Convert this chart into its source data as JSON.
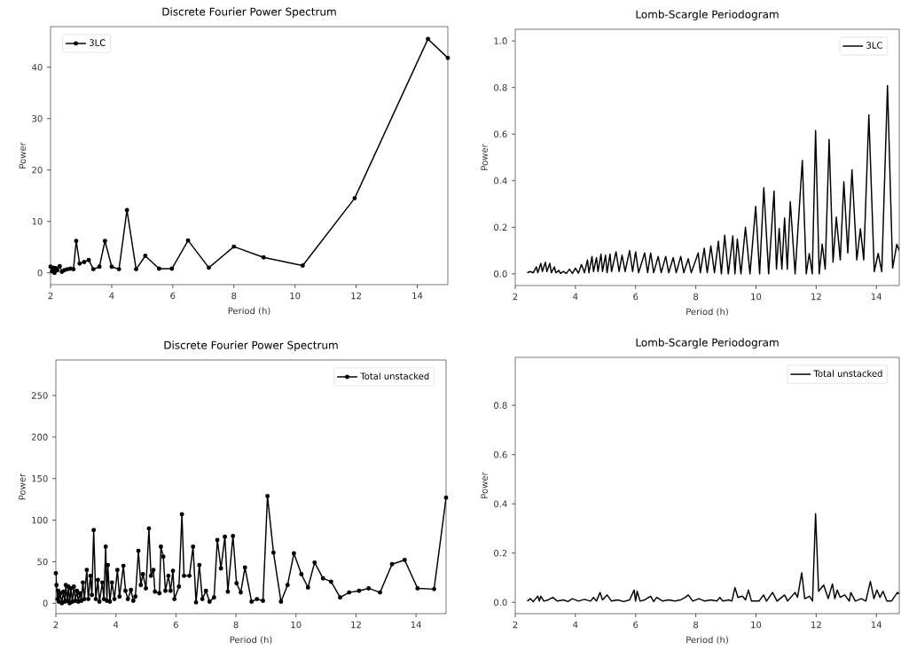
{
  "chart_data": [
    {
      "type": "line",
      "title": "Discrete Fourier Power Spectrum",
      "xlabel": "Period (h)",
      "ylabel": "Power",
      "xlim": [
        2,
        15
      ],
      "ylim": [
        -2.3,
        47.9
      ],
      "xticks": [
        2,
        4,
        6,
        8,
        10,
        12,
        14
      ],
      "yticks": [
        0,
        10,
        20,
        30,
        40
      ],
      "marker": "circle",
      "legend": "top left",
      "x": [
        2.0,
        2.05,
        2.1,
        2.13,
        2.17,
        2.22,
        2.3,
        2.37,
        2.45,
        2.55,
        2.65,
        2.75,
        2.84,
        2.95,
        3.1,
        3.25,
        3.4,
        3.6,
        3.78,
        4.0,
        4.24,
        4.5,
        4.8,
        5.1,
        5.55,
        5.97,
        6.5,
        7.18,
        8.0,
        8.97,
        10.25,
        11.95,
        14.35,
        15.0
      ],
      "series": [
        {
          "name": "3LC",
          "color": "#000000",
          "values": [
            1.2,
            0.3,
            1.0,
            0,
            0.9,
            0.5,
            1.3,
            0.2,
            0.5,
            0.7,
            0.8,
            0.7,
            6.2,
            1.8,
            2.1,
            2.5,
            0.7,
            1.2,
            6.2,
            1.2,
            0.7,
            12.2,
            0.7,
            3.3,
            0.8,
            0.8,
            6.3,
            1.0,
            5.1,
            3.0,
            1.4,
            14.5,
            45.5,
            41.8
          ]
        }
      ]
    },
    {
      "type": "line",
      "title": "Lomb-Scargle Periodogram",
      "xlabel": "Period (h)",
      "ylabel": "Power",
      "xlim": [
        2,
        14.76
      ],
      "ylim": [
        -0.05,
        1.05
      ],
      "xticks": [
        2,
        4,
        6,
        8,
        10,
        12,
        14
      ],
      "yticks": [
        {
          "value": 0,
          "label": "0.0"
        },
        {
          "value": 0.2,
          "label": "0.2"
        },
        {
          "value": 0.4,
          "label": "0.4"
        },
        {
          "value": 0.6,
          "label": "0.6"
        },
        {
          "value": 0.8,
          "label": "0.8"
        },
        {
          "value": 1.0,
          "label": "1.0"
        }
      ],
      "marker": "none",
      "legend": "top right",
      "x": [
        2.4,
        2.5,
        2.6,
        2.7,
        2.75,
        2.85,
        2.9,
        3.0,
        3.05,
        3.15,
        3.2,
        3.3,
        3.35,
        3.45,
        3.5,
        3.6,
        3.7,
        3.8,
        3.9,
        4.0,
        4.1,
        4.2,
        4.3,
        4.4,
        4.45,
        4.55,
        4.6,
        4.7,
        4.75,
        4.85,
        4.9,
        5.0,
        5.05,
        5.15,
        5.2,
        5.35,
        5.45,
        5.55,
        5.65,
        5.8,
        5.9,
        6.0,
        6.1,
        6.3,
        6.4,
        6.5,
        6.6,
        6.75,
        6.85,
        7.0,
        7.1,
        7.25,
        7.35,
        7.5,
        7.6,
        7.75,
        7.85,
        8.08,
        8.15,
        8.28,
        8.38,
        8.5,
        8.62,
        8.75,
        8.85,
        8.96,
        9.08,
        9.23,
        9.3,
        9.38,
        9.5,
        9.65,
        9.8,
        9.99,
        10.12,
        10.26,
        10.42,
        10.6,
        10.68,
        10.77,
        10.86,
        10.95,
        11.04,
        11.14,
        11.3,
        11.54,
        11.67,
        11.77,
        11.87,
        11.98,
        12.1,
        12.2,
        12.3,
        12.43,
        12.56,
        12.67,
        12.8,
        12.92,
        13.05,
        13.19,
        13.35,
        13.47,
        13.58,
        13.75,
        13.93,
        14.06,
        14.18,
        14.37,
        14.54,
        14.68,
        14.76
      ],
      "series": [
        {
          "name": "3LC",
          "color": "#000000",
          "values": [
            0.005,
            0.01,
            0.005,
            0.03,
            0.005,
            0.045,
            0.01,
            0.05,
            0.01,
            0.045,
            0.005,
            0.03,
            0.005,
            0.015,
            0.002,
            0.01,
            0.002,
            0.02,
            0.002,
            0.025,
            0.003,
            0.04,
            0.005,
            0.06,
            0.005,
            0.075,
            0.01,
            0.07,
            0.01,
            0.085,
            0.01,
            0.08,
            0.005,
            0.085,
            0.01,
            0.095,
            0.01,
            0.08,
            0.01,
            0.1,
            0.01,
            0.095,
            0.005,
            0.09,
            0.005,
            0.09,
            0.005,
            0.075,
            0.005,
            0.075,
            0.005,
            0.07,
            0.005,
            0.075,
            0.005,
            0.065,
            0.005,
            0.09,
            0.005,
            0.11,
            0.005,
            0.12,
            0.005,
            0.14,
            0.0,
            0.166,
            0.0,
            0.163,
            0.0,
            0.15,
            0.0,
            0.2,
            0.0,
            0.29,
            0.0,
            0.37,
            0.0,
            0.355,
            0.02,
            0.195,
            0.02,
            0.24,
            0.02,
            0.31,
            0.0,
            0.487,
            0.0,
            0.087,
            0.0,
            0.615,
            0.0,
            0.128,
            0.02,
            0.577,
            0.05,
            0.244,
            0.06,
            0.395,
            0.09,
            0.447,
            0.06,
            0.194,
            0.06,
            0.683,
            0.01,
            0.088,
            0.01,
            0.808,
            0.025,
            0.127,
            0.1
          ]
        }
      ]
    },
    {
      "type": "line",
      "title": "Discrete Fourier Power Spectrum",
      "xlabel": "Period (h)",
      "ylabel": "Power",
      "xlim": [
        2,
        15
      ],
      "ylim": [
        -12.5,
        292.7
      ],
      "xticks": [
        2,
        4,
        6,
        8,
        10,
        12,
        14
      ],
      "yticks": [
        0,
        50,
        100,
        150,
        200,
        250
      ],
      "marker": "circle",
      "legend": "top right",
      "x": [
        2.0,
        2.02,
        2.05,
        2.08,
        2.1,
        2.15,
        2.2,
        2.25,
        2.3,
        2.33,
        2.38,
        2.42,
        2.46,
        2.5,
        2.55,
        2.6,
        2.65,
        2.7,
        2.75,
        2.8,
        2.85,
        2.9,
        2.95,
        3.03,
        3.08,
        3.15,
        3.2,
        3.26,
        3.33,
        3.4,
        3.45,
        3.55,
        3.6,
        3.66,
        3.7,
        3.73,
        3.8,
        3.87,
        3.95,
        4.05,
        4.12,
        4.25,
        4.32,
        4.4,
        4.5,
        4.58,
        4.65,
        4.75,
        4.83,
        4.9,
        5.0,
        5.1,
        5.17,
        5.25,
        5.3,
        5.45,
        5.5,
        5.58,
        5.65,
        5.75,
        5.82,
        5.9,
        5.95,
        6.1,
        6.2,
        6.27,
        6.45,
        6.57,
        6.67,
        6.78,
        6.88,
        7.0,
        7.12,
        7.27,
        7.38,
        7.5,
        7.63,
        7.73,
        7.9,
        8.02,
        8.16,
        8.3,
        8.52,
        8.7,
        8.9,
        9.05,
        9.25,
        9.5,
        9.72,
        9.93,
        10.18,
        10.4,
        10.62,
        10.9,
        11.17,
        11.47,
        11.77,
        12.1,
        12.42,
        12.8,
        13.2,
        13.62,
        14.05,
        14.6,
        15.0
      ],
      "series": [
        {
          "name": "Total unstacked",
          "color": "#000000",
          "values": [
            36,
            22,
            5,
            15,
            2,
            12,
            0,
            14,
            2,
            22,
            3,
            20,
            0,
            18,
            2,
            20,
            3,
            15,
            2,
            12,
            3,
            25,
            5,
            40,
            5,
            33,
            10,
            88,
            5,
            28,
            2,
            25,
            5,
            68,
            3,
            46,
            2,
            25,
            5,
            40,
            8,
            45,
            15,
            5,
            16,
            3,
            8,
            63,
            22,
            35,
            18,
            90,
            33,
            40,
            14,
            12,
            68,
            56,
            15,
            33,
            15,
            39,
            5,
            20,
            107,
            33,
            33,
            68,
            1,
            46,
            5,
            15,
            2,
            7,
            76,
            42,
            80,
            14,
            81,
            24,
            13,
            43,
            2,
            5,
            3,
            129,
            61,
            2,
            22,
            60,
            35,
            19,
            49,
            30,
            26,
            7,
            13,
            15,
            18,
            13,
            47,
            52,
            18,
            17,
            127
          ]
        }
      ]
    },
    {
      "type": "line",
      "title": "Lomb-Scargle Periodogram",
      "xlabel": "Period (h)",
      "ylabel": "Power",
      "xlim": [
        2,
        14.76
      ],
      "ylim": [
        -0.046,
        0.995
      ],
      "xticks": [
        2,
        4,
        6,
        8,
        10,
        12,
        14
      ],
      "yticks": [
        {
          "value": 0,
          "label": "0.0"
        },
        {
          "value": 0.2,
          "label": "0.2"
        },
        {
          "value": 0.4,
          "label": "0.4"
        },
        {
          "value": 0.6,
          "label": "0.6"
        },
        {
          "value": 0.8,
          "label": "0.8"
        }
      ],
      "marker": "none",
      "legend": "top right",
      "x": [
        2.4,
        2.5,
        2.6,
        2.75,
        2.8,
        2.85,
        2.95,
        3.1,
        3.25,
        3.4,
        3.6,
        3.75,
        3.9,
        4.1,
        4.3,
        4.5,
        4.6,
        4.7,
        4.82,
        4.9,
        5.05,
        5.2,
        5.4,
        5.6,
        5.8,
        5.95,
        6.0,
        6.05,
        6.15,
        6.3,
        6.5,
        6.6,
        6.7,
        6.9,
        7.1,
        7.3,
        7.5,
        7.65,
        7.75,
        7.9,
        8.1,
        8.3,
        8.5,
        8.7,
        8.8,
        8.9,
        9.1,
        9.2,
        9.3,
        9.4,
        9.55,
        9.65,
        9.75,
        9.85,
        10.1,
        10.25,
        10.35,
        10.55,
        10.7,
        10.95,
        11.05,
        11.3,
        11.38,
        11.52,
        11.62,
        11.78,
        11.88,
        11.98,
        12.08,
        12.25,
        12.4,
        12.54,
        12.62,
        12.7,
        12.8,
        12.95,
        13.1,
        13.15,
        13.3,
        13.5,
        13.65,
        13.8,
        13.92,
        14.02,
        14.12,
        14.22,
        14.35,
        14.5,
        14.7,
        14.76
      ],
      "series": [
        {
          "name": "Total unstacked",
          "color": "#000000",
          "values": [
            0.005,
            0.015,
            0.003,
            0.025,
            0.005,
            0.025,
            0.005,
            0.01,
            0.02,
            0.005,
            0.01,
            0.003,
            0.015,
            0.005,
            0.012,
            0.005,
            0.02,
            0.005,
            0.04,
            0.01,
            0.03,
            0.005,
            0.01,
            0.003,
            0.01,
            0.05,
            0.005,
            0.045,
            0.005,
            0.01,
            0.025,
            0.003,
            0.02,
            0.005,
            0.01,
            0.005,
            0.01,
            0.02,
            0.03,
            0.005,
            0.015,
            0.005,
            0.01,
            0.005,
            0.02,
            0.005,
            0.01,
            0.005,
            0.06,
            0.02,
            0.025,
            0.01,
            0.05,
            0.005,
            0.005,
            0.03,
            0.005,
            0.04,
            0.005,
            0.03,
            0.005,
            0.04,
            0.02,
            0.12,
            0.015,
            0.025,
            0.005,
            0.36,
            0.045,
            0.07,
            0.015,
            0.075,
            0.015,
            0.05,
            0.02,
            0.03,
            0.005,
            0.04,
            0.005,
            0.015,
            0.005,
            0.085,
            0.015,
            0.05,
            0.02,
            0.045,
            0.005,
            0.005,
            0.04,
            0.035
          ]
        }
      ]
    }
  ]
}
